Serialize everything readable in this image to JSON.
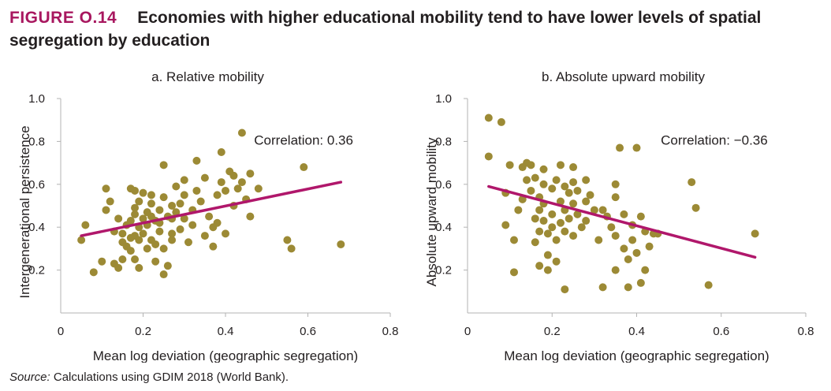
{
  "figure": {
    "label": "FIGURE O.14",
    "title": "Economies with higher educational mobility tend to have lower levels of spatial segregation by education"
  },
  "source": {
    "label": "Source:",
    "text": "Calculations using GDIM 2018 (World Bank)."
  },
  "colors": {
    "points": "#9c8a35",
    "fit_line": "#b0176b",
    "axis": "#b3b3b3",
    "figure_label": "#a8175f"
  },
  "chart_data": [
    {
      "type": "scatter",
      "title": "a. Relative mobility",
      "xlabel": "Mean log deviation (geographic segregation)",
      "ylabel": "Intergenerational persistence",
      "xlim": [
        0,
        0.8
      ],
      "ylim": [
        0,
        1.0
      ],
      "x_ticks": [
        "0",
        "0.2",
        "0.4",
        "0.6",
        "0.8"
      ],
      "y_ticks": [
        "0.2",
        "0.4",
        "0.6",
        "0.8",
        "1.0"
      ],
      "annotation": "Correlation: 0.36",
      "trend_line": {
        "x": [
          0.05,
          0.68
        ],
        "y": [
          0.36,
          0.61
        ]
      },
      "points": [
        [
          0.05,
          0.34
        ],
        [
          0.06,
          0.41
        ],
        [
          0.08,
          0.19
        ],
        [
          0.1,
          0.24
        ],
        [
          0.11,
          0.48
        ],
        [
          0.11,
          0.58
        ],
        [
          0.12,
          0.52
        ],
        [
          0.13,
          0.38
        ],
        [
          0.13,
          0.23
        ],
        [
          0.14,
          0.44
        ],
        [
          0.14,
          0.21
        ],
        [
          0.15,
          0.37
        ],
        [
          0.15,
          0.33
        ],
        [
          0.15,
          0.25
        ],
        [
          0.16,
          0.41
        ],
        [
          0.16,
          0.31
        ],
        [
          0.17,
          0.43
        ],
        [
          0.17,
          0.58
        ],
        [
          0.17,
          0.35
        ],
        [
          0.17,
          0.29
        ],
        [
          0.18,
          0.49
        ],
        [
          0.18,
          0.57
        ],
        [
          0.18,
          0.46
        ],
        [
          0.18,
          0.36
        ],
        [
          0.18,
          0.25
        ],
        [
          0.19,
          0.21
        ],
        [
          0.19,
          0.52
        ],
        [
          0.19,
          0.4
        ],
        [
          0.19,
          0.34
        ],
        [
          0.2,
          0.56
        ],
        [
          0.2,
          0.44
        ],
        [
          0.2,
          0.37
        ],
        [
          0.21,
          0.47
        ],
        [
          0.21,
          0.41
        ],
        [
          0.21,
          0.3
        ],
        [
          0.22,
          0.51
        ],
        [
          0.22,
          0.45
        ],
        [
          0.22,
          0.34
        ],
        [
          0.22,
          0.55
        ],
        [
          0.23,
          0.24
        ],
        [
          0.23,
          0.43
        ],
        [
          0.23,
          0.32
        ],
        [
          0.24,
          0.48
        ],
        [
          0.24,
          0.38
        ],
        [
          0.24,
          0.42
        ],
        [
          0.25,
          0.54
        ],
        [
          0.25,
          0.18
        ],
        [
          0.25,
          0.69
        ],
        [
          0.25,
          0.3
        ],
        [
          0.26,
          0.45
        ],
        [
          0.26,
          0.22
        ],
        [
          0.27,
          0.5
        ],
        [
          0.27,
          0.44
        ],
        [
          0.27,
          0.37
        ],
        [
          0.27,
          0.34
        ],
        [
          0.28,
          0.59
        ],
        [
          0.28,
          0.47
        ],
        [
          0.29,
          0.51
        ],
        [
          0.29,
          0.39
        ],
        [
          0.3,
          0.62
        ],
        [
          0.3,
          0.55
        ],
        [
          0.3,
          0.44
        ],
        [
          0.31,
          0.33
        ],
        [
          0.32,
          0.48
        ],
        [
          0.32,
          0.41
        ],
        [
          0.33,
          0.71
        ],
        [
          0.33,
          0.57
        ],
        [
          0.34,
          0.52
        ],
        [
          0.35,
          0.63
        ],
        [
          0.35,
          0.36
        ],
        [
          0.36,
          0.45
        ],
        [
          0.37,
          0.4
        ],
        [
          0.37,
          0.31
        ],
        [
          0.38,
          0.55
        ],
        [
          0.38,
          0.42
        ],
        [
          0.39,
          0.75
        ],
        [
          0.39,
          0.61
        ],
        [
          0.4,
          0.57
        ],
        [
          0.4,
          0.37
        ],
        [
          0.41,
          0.66
        ],
        [
          0.42,
          0.5
        ],
        [
          0.42,
          0.64
        ],
        [
          0.43,
          0.58
        ],
        [
          0.44,
          0.84
        ],
        [
          0.44,
          0.61
        ],
        [
          0.45,
          0.53
        ],
        [
          0.46,
          0.65
        ],
        [
          0.46,
          0.45
        ],
        [
          0.48,
          0.58
        ],
        [
          0.55,
          0.34
        ],
        [
          0.56,
          0.3
        ],
        [
          0.59,
          0.68
        ],
        [
          0.68,
          0.32
        ]
      ]
    },
    {
      "type": "scatter",
      "title": "b. Absolute upward mobility",
      "xlabel": "Mean log deviation (geographic segregation)",
      "ylabel": "Absolute upward mobility",
      "xlim": [
        0,
        0.8
      ],
      "ylim": [
        0,
        1.0
      ],
      "x_ticks": [
        "0",
        "0.2",
        "0.4",
        "0.6",
        "0.8"
      ],
      "y_ticks": [
        "0.2",
        "0.4",
        "0.6",
        "0.8",
        "1.0"
      ],
      "annotation": "Correlation: −0.36",
      "trend_line": {
        "x": [
          0.05,
          0.68
        ],
        "y": [
          0.59,
          0.26
        ]
      },
      "points": [
        [
          0.05,
          0.91
        ],
        [
          0.05,
          0.73
        ],
        [
          0.08,
          0.89
        ],
        [
          0.09,
          0.56
        ],
        [
          0.09,
          0.41
        ],
        [
          0.1,
          0.69
        ],
        [
          0.11,
          0.34
        ],
        [
          0.11,
          0.19
        ],
        [
          0.12,
          0.48
        ],
        [
          0.13,
          0.68
        ],
        [
          0.13,
          0.53
        ],
        [
          0.14,
          0.7
        ],
        [
          0.14,
          0.62
        ],
        [
          0.15,
          0.69
        ],
        [
          0.15,
          0.57
        ],
        [
          0.16,
          0.63
        ],
        [
          0.16,
          0.44
        ],
        [
          0.16,
          0.33
        ],
        [
          0.17,
          0.54
        ],
        [
          0.17,
          0.48
        ],
        [
          0.17,
          0.38
        ],
        [
          0.17,
          0.22
        ],
        [
          0.18,
          0.67
        ],
        [
          0.18,
          0.6
        ],
        [
          0.18,
          0.51
        ],
        [
          0.18,
          0.43
        ],
        [
          0.19,
          0.37
        ],
        [
          0.19,
          0.27
        ],
        [
          0.19,
          0.2
        ],
        [
          0.2,
          0.58
        ],
        [
          0.2,
          0.46
        ],
        [
          0.2,
          0.4
        ],
        [
          0.21,
          0.62
        ],
        [
          0.21,
          0.34
        ],
        [
          0.21,
          0.24
        ],
        [
          0.22,
          0.69
        ],
        [
          0.22,
          0.52
        ],
        [
          0.22,
          0.42
        ],
        [
          0.23,
          0.59
        ],
        [
          0.23,
          0.48
        ],
        [
          0.23,
          0.38
        ],
        [
          0.23,
          0.11
        ],
        [
          0.24,
          0.56
        ],
        [
          0.24,
          0.44
        ],
        [
          0.25,
          0.61
        ],
        [
          0.25,
          0.51
        ],
        [
          0.25,
          0.36
        ],
        [
          0.25,
          0.68
        ],
        [
          0.26,
          0.57
        ],
        [
          0.26,
          0.46
        ],
        [
          0.27,
          0.4
        ],
        [
          0.28,
          0.62
        ],
        [
          0.28,
          0.52
        ],
        [
          0.28,
          0.43
        ],
        [
          0.29,
          0.55
        ],
        [
          0.3,
          0.48
        ],
        [
          0.31,
          0.34
        ],
        [
          0.32,
          0.48
        ],
        [
          0.32,
          0.12
        ],
        [
          0.33,
          0.45
        ],
        [
          0.34,
          0.4
        ],
        [
          0.35,
          0.6
        ],
        [
          0.35,
          0.54
        ],
        [
          0.35,
          0.36
        ],
        [
          0.35,
          0.2
        ],
        [
          0.36,
          0.77
        ],
        [
          0.37,
          0.46
        ],
        [
          0.37,
          0.3
        ],
        [
          0.38,
          0.25
        ],
        [
          0.38,
          0.12
        ],
        [
          0.39,
          0.41
        ],
        [
          0.39,
          0.34
        ],
        [
          0.4,
          0.77
        ],
        [
          0.4,
          0.28
        ],
        [
          0.41,
          0.45
        ],
        [
          0.41,
          0.14
        ],
        [
          0.42,
          0.38
        ],
        [
          0.42,
          0.2
        ],
        [
          0.43,
          0.31
        ],
        [
          0.44,
          0.37
        ],
        [
          0.45,
          0.37
        ],
        [
          0.53,
          0.61
        ],
        [
          0.54,
          0.49
        ],
        [
          0.57,
          0.13
        ],
        [
          0.68,
          0.37
        ]
      ]
    }
  ]
}
